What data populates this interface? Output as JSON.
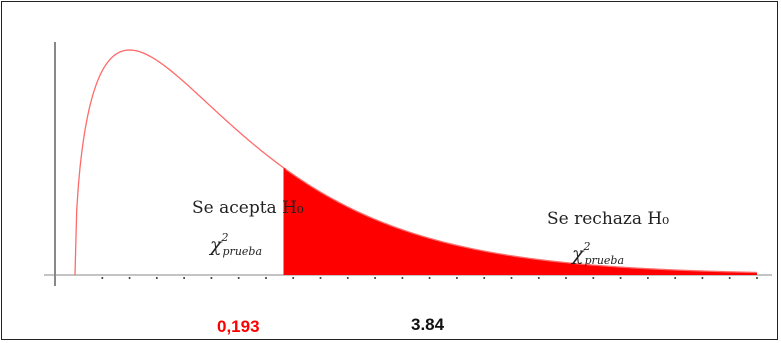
{
  "chart_data": {
    "type": "area",
    "distribution": "chi-square",
    "degrees_of_freedom": 3,
    "xlim": [
      0,
      12.5
    ],
    "critical_value": 3.84,
    "test_statistic": 0.193,
    "curve_color": "#ff6b6b",
    "fill_color": "#ff0000",
    "axis_color": "#888888",
    "grid": false,
    "regions": [
      {
        "key": "accept",
        "text": "Se acepta H₀",
        "stat_base": "χ",
        "stat_sup": "2",
        "stat_sub": "prueba"
      },
      {
        "key": "reject",
        "text": "Se rechaza H₀",
        "stat_base": "χ",
        "stat_sup": "2",
        "stat_sub": "prueba"
      }
    ],
    "annotations": {
      "test_statistic_label": "0,193",
      "test_statistic_color": "#ff0000",
      "critical_value_label": "3.84",
      "critical_value_color": "#111111"
    }
  }
}
